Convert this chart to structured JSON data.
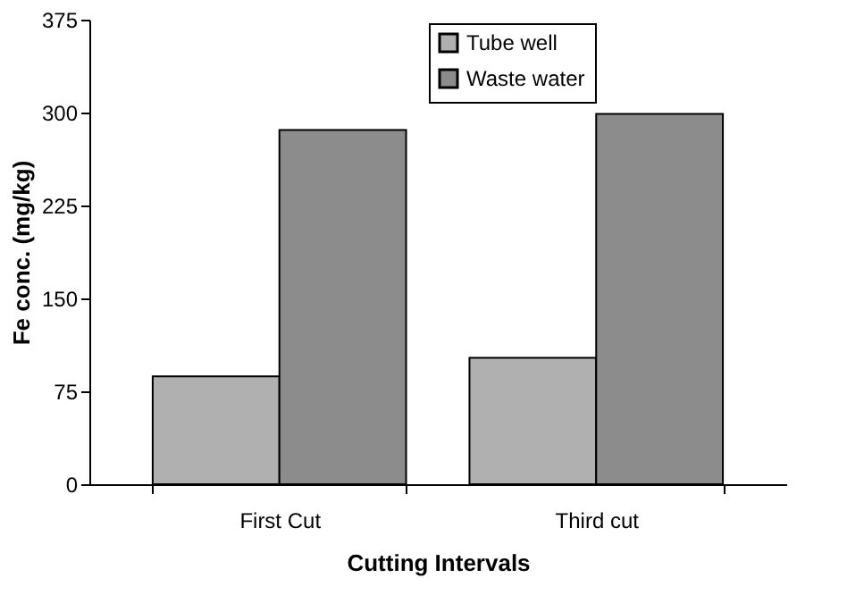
{
  "chart_data": {
    "type": "bar",
    "xlabel": "Cutting Intervals",
    "ylabel": "Fe conc. (mg/kg)",
    "categories": [
      "First Cut",
      "Third cut"
    ],
    "series": [
      {
        "name": "Tube well",
        "color": "#b0b0b0",
        "values": [
          87,
          102
        ]
      },
      {
        "name": "Waste water",
        "color": "#8c8c8c",
        "values": [
          286,
          299
        ]
      }
    ],
    "ylim": [
      0,
      375
    ],
    "yticks": [
      0,
      75,
      150,
      225,
      300,
      375
    ],
    "grid": false,
    "legend": "top right"
  }
}
